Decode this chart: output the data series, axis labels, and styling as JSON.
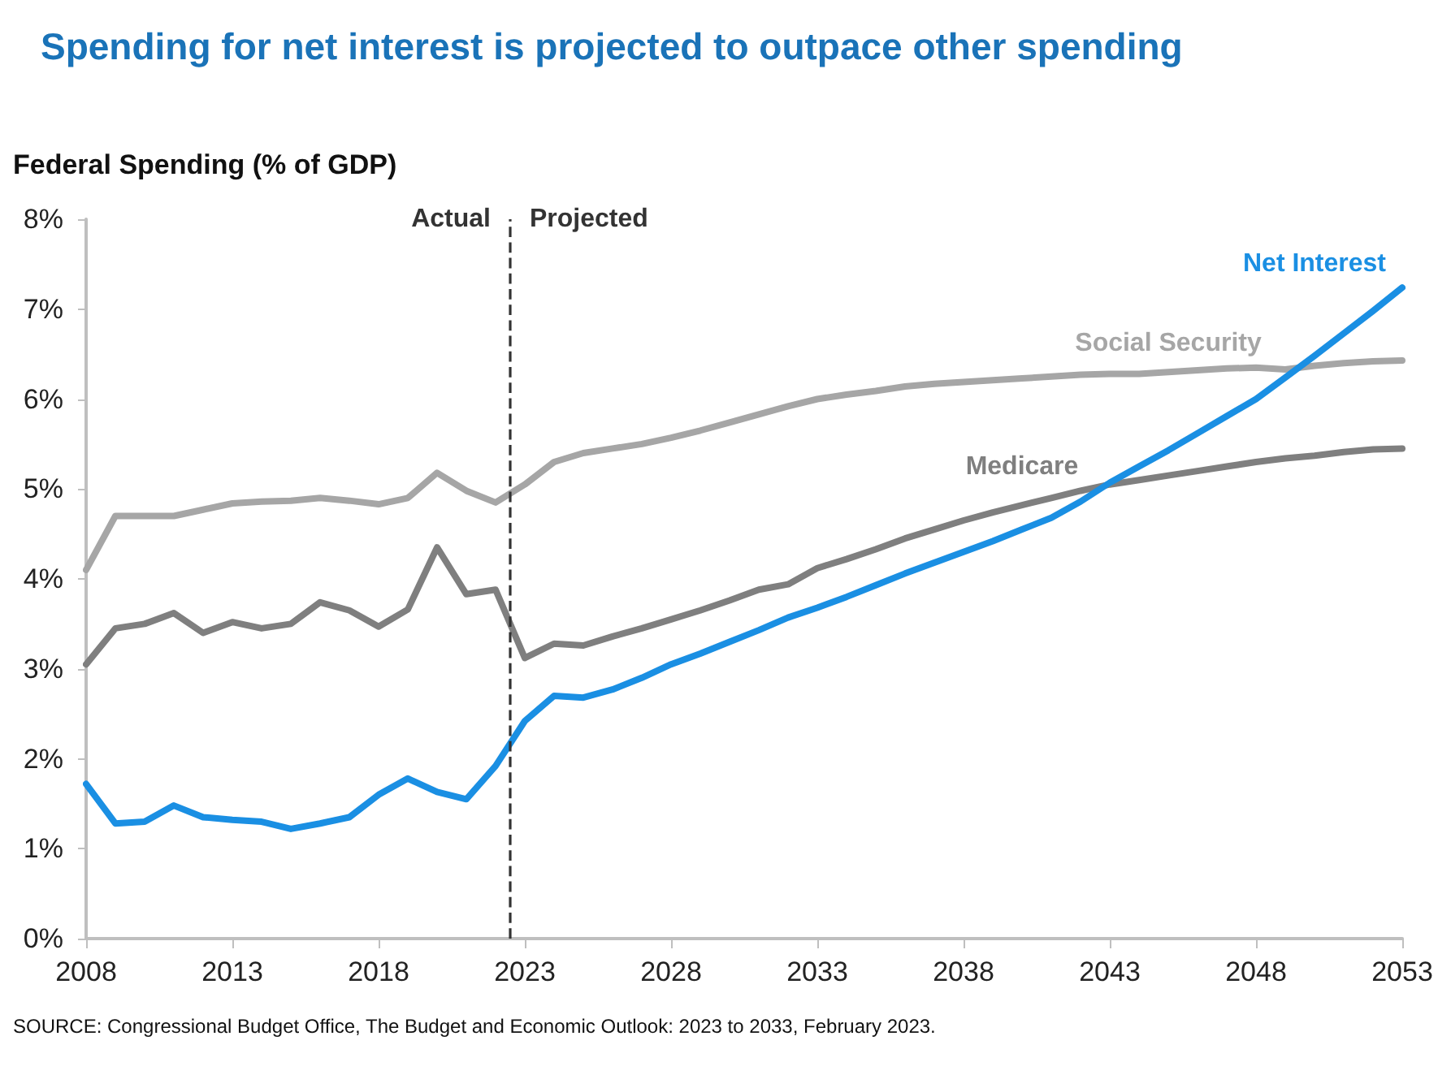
{
  "chart_data": {
    "type": "line",
    "title": "Spending for net interest is projected to outpace other spending",
    "ylabel": "Federal Spending (% of GDP)",
    "x": [
      2008,
      2009,
      2010,
      2011,
      2012,
      2013,
      2014,
      2015,
      2016,
      2017,
      2018,
      2019,
      2020,
      2021,
      2022,
      2023,
      2024,
      2025,
      2026,
      2027,
      2028,
      2029,
      2030,
      2031,
      2032,
      2033,
      2034,
      2035,
      2036,
      2037,
      2038,
      2039,
      2040,
      2041,
      2042,
      2043,
      2044,
      2045,
      2046,
      2047,
      2048,
      2049,
      2050,
      2051,
      2052,
      2053
    ],
    "series": [
      {
        "name": "Social Security",
        "color": "#a6a6a6",
        "values": [
          4.1,
          4.7,
          4.7,
          4.7,
          4.77,
          4.84,
          4.86,
          4.87,
          4.9,
          4.87,
          4.83,
          4.9,
          5.18,
          4.98,
          4.85,
          5.05,
          5.3,
          5.4,
          5.45,
          5.5,
          5.57,
          5.65,
          5.74,
          5.83,
          5.92,
          6.0,
          6.05,
          6.09,
          6.14,
          6.17,
          6.19,
          6.21,
          6.23,
          6.25,
          6.27,
          6.28,
          6.28,
          6.3,
          6.32,
          6.34,
          6.35,
          6.33,
          6.37,
          6.4,
          6.42,
          6.43
        ]
      },
      {
        "name": "Medicare",
        "color": "#7f7f7f",
        "values": [
          3.05,
          3.45,
          3.5,
          3.62,
          3.4,
          3.52,
          3.45,
          3.5,
          3.74,
          3.65,
          3.47,
          3.66,
          4.35,
          3.83,
          3.88,
          3.12,
          3.28,
          3.26,
          3.36,
          3.45,
          3.55,
          3.65,
          3.76,
          3.88,
          3.94,
          4.12,
          4.22,
          4.33,
          4.45,
          4.55,
          4.65,
          4.74,
          4.82,
          4.9,
          4.98,
          5.05,
          5.1,
          5.15,
          5.2,
          5.25,
          5.3,
          5.34,
          5.37,
          5.41,
          5.44,
          5.45
        ]
      },
      {
        "name": "Net Interest",
        "color": "#1a8fe3",
        "values": [
          1.72,
          1.28,
          1.3,
          1.48,
          1.35,
          1.32,
          1.3,
          1.22,
          1.28,
          1.35,
          1.6,
          1.78,
          1.63,
          1.55,
          1.92,
          2.42,
          2.7,
          2.68,
          2.77,
          2.9,
          3.05,
          3.17,
          3.3,
          3.43,
          3.57,
          3.68,
          3.8,
          3.93,
          4.06,
          4.18,
          4.3,
          4.42,
          4.55,
          4.68,
          4.86,
          5.07,
          5.25,
          5.43,
          5.62,
          5.81,
          6.0,
          6.24,
          6.48,
          6.73,
          6.98,
          7.24
        ]
      }
    ],
    "xlim": [
      2008,
      2053
    ],
    "xticks": [
      2008,
      2013,
      2018,
      2023,
      2028,
      2033,
      2038,
      2043,
      2048,
      2053
    ],
    "ylim": [
      0,
      8
    ],
    "yticks": [
      {
        "value": 0,
        "label": "0%"
      },
      {
        "value": 1,
        "label": "1%"
      },
      {
        "value": 2,
        "label": "2%"
      },
      {
        "value": 3,
        "label": "3%"
      },
      {
        "value": 4,
        "label": "4%"
      },
      {
        "value": 5,
        "label": "5%"
      },
      {
        "value": 6,
        "label": "6%"
      },
      {
        "value": 7,
        "label": "7%"
      },
      {
        "value": 8,
        "label": "8%"
      }
    ],
    "ref_lines": [
      {
        "axis": "x",
        "value": 2022.5,
        "color": "#333333",
        "line_style": "dashed"
      }
    ],
    "annotations": [
      "Actual",
      "Projected",
      "SOURCE: Congressional Budget Office, The Budget and Economic Outlook: 2023 to 2033, February 2023."
    ],
    "grid": false,
    "legend": false,
    "marker": "none",
    "line_style": "solid"
  }
}
